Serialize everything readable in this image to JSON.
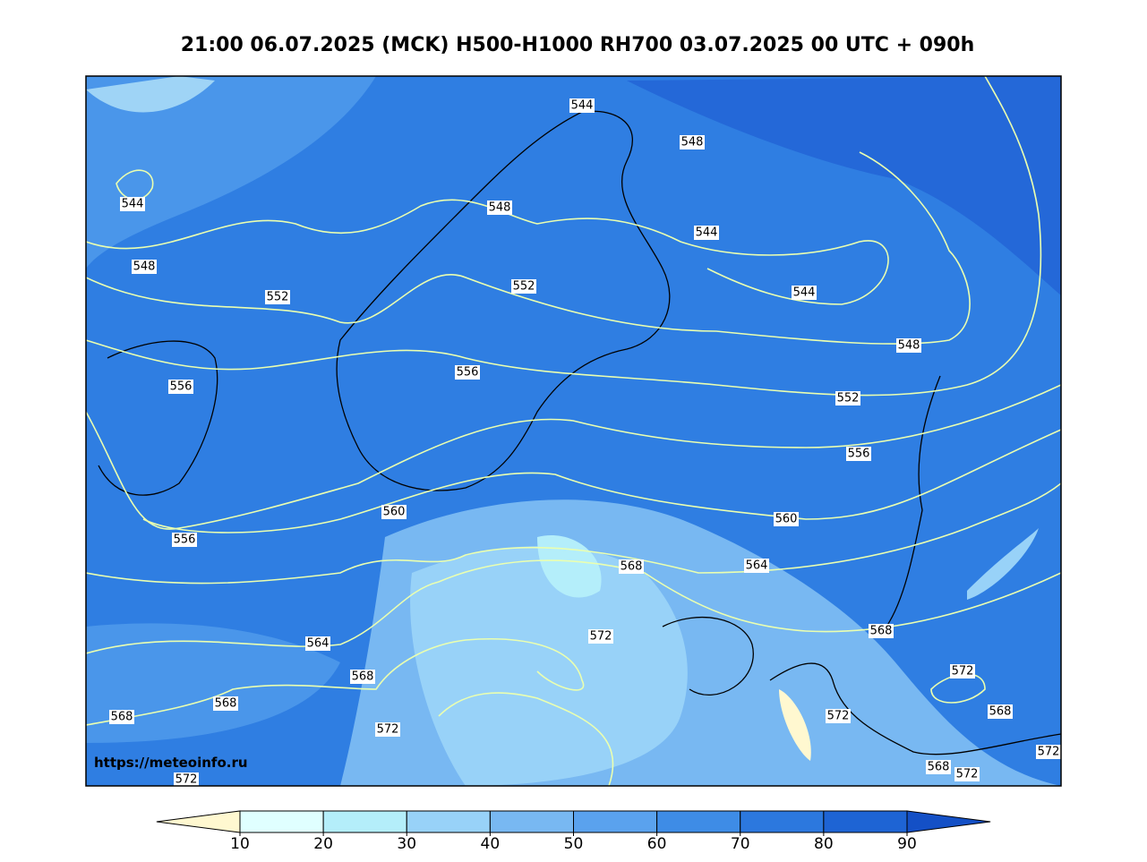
{
  "title": "21:00 06.07.2025 (MCK) H500-H1000 RH700 03.07.2025 00 UTC + 090h",
  "watermark": "https://meteoinfo.ru",
  "contour_labels": [
    544,
    548,
    552,
    556,
    556,
    544,
    548,
    548,
    552,
    544,
    544,
    548,
    552,
    556,
    560,
    556,
    560,
    564,
    568,
    572,
    564,
    568,
    568,
    568,
    572,
    572,
    568,
    572,
    568,
    572,
    572,
    568,
    572
  ],
  "colorbar": {
    "ticks": [
      10,
      20,
      30,
      40,
      50,
      60,
      70,
      80,
      90
    ],
    "colors": [
      "#fff8d0",
      "#e0ffff",
      "#b4eefa",
      "#98d2f8",
      "#78b8f2",
      "#5aa2ee",
      "#3e8ce6",
      "#2c78de",
      "#1e64d4",
      "#1450c6"
    ]
  }
}
